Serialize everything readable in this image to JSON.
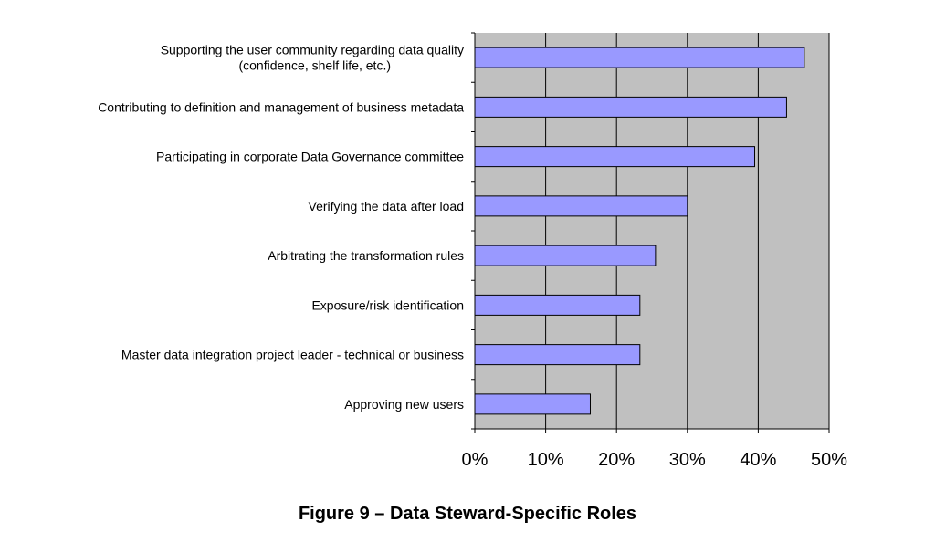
{
  "chart_data": {
    "type": "bar",
    "orientation": "horizontal",
    "categories": [
      [
        "Supporting the user community regarding data quality",
        "(confidence, shelf life, etc.)"
      ],
      [
        "Contributing to definition and management of business metadata"
      ],
      [
        "Participating in corporate Data Governance committee"
      ],
      [
        "Verifying the data after load"
      ],
      [
        "Arbitrating the transformation rules"
      ],
      [
        "Exposure/risk identification"
      ],
      [
        "Master data integration project leader - technical or business"
      ],
      [
        "Approving new  users"
      ]
    ],
    "values": [
      46.5,
      44,
      39.5,
      30,
      25.5,
      23.3,
      23.3,
      16.3
    ],
    "xlim": [
      0,
      50
    ],
    "xticks": [
      0,
      10,
      20,
      30,
      40,
      50
    ],
    "xtick_labels": [
      "0%",
      "10%",
      "20%",
      "30%",
      "40%",
      "50%"
    ],
    "grid": true,
    "colors": {
      "bar_fill": "#9999ff",
      "bar_stroke": "#000000",
      "plot_background": "#c0c0c0",
      "gridline": "#000000"
    }
  },
  "figure": {
    "caption": "Figure 9 – Data Steward-Specific Roles"
  }
}
